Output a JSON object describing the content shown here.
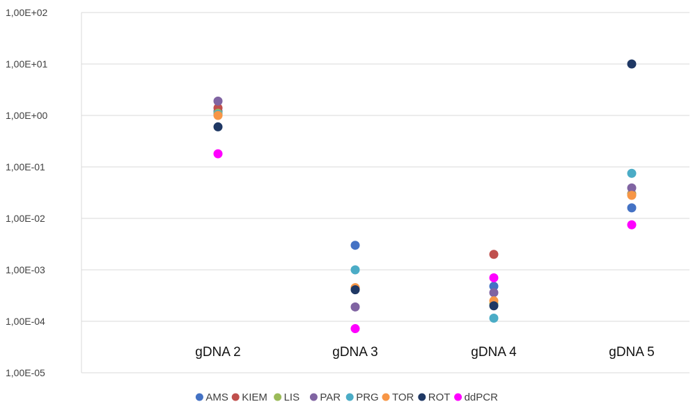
{
  "chart_data": {
    "type": "scatter",
    "y_scale": "log",
    "ylim": [
      1e-05,
      100
    ],
    "y_ticks": [
      100,
      10,
      1,
      0.1,
      0.01,
      0.001,
      0.0001,
      1e-05
    ],
    "y_tick_labels": [
      "1,00E+02",
      "1,00E+01",
      "1,00E+00",
      "1,00E-01",
      "1,00E-02",
      "1,00E-03",
      "1,00E-04",
      "1,00E-05"
    ],
    "categories": [
      "gDNA 2",
      "gDNA 3",
      "gDNA 4",
      "gDNA 5"
    ],
    "grid": true,
    "legend_position": "bottom",
    "series": [
      {
        "name": "AMS",
        "color": "#4472C4",
        "values": [
          1.2,
          0.003,
          0.00048,
          0.016
        ]
      },
      {
        "name": "KIEM",
        "color": "#C0504D",
        "values": [
          1.4,
          0.00044,
          0.002,
          0.03
        ]
      },
      {
        "name": "LIS",
        "color": "#9BBB59",
        "values": [
          1.1,
          0.00043,
          0.00022,
          0.029
        ]
      },
      {
        "name": "PAR",
        "color": "#8064A2",
        "values": [
          1.9,
          0.00019,
          0.00036,
          0.039
        ]
      },
      {
        "name": "PRG",
        "color": "#4BACC6",
        "values": [
          1.05,
          0.001,
          0.000115,
          0.075
        ]
      },
      {
        "name": "TOR",
        "color": "#F79646",
        "values": [
          1.0,
          0.00045,
          0.00025,
          0.028
        ]
      },
      {
        "name": "ROT",
        "color": "#1F3864",
        "values": [
          0.6,
          0.00041,
          0.0002,
          10
        ]
      },
      {
        "name": "ddPCR",
        "color": "#FF00FF",
        "values": [
          0.18,
          7.2e-05,
          0.0007,
          0.0075
        ]
      }
    ]
  }
}
